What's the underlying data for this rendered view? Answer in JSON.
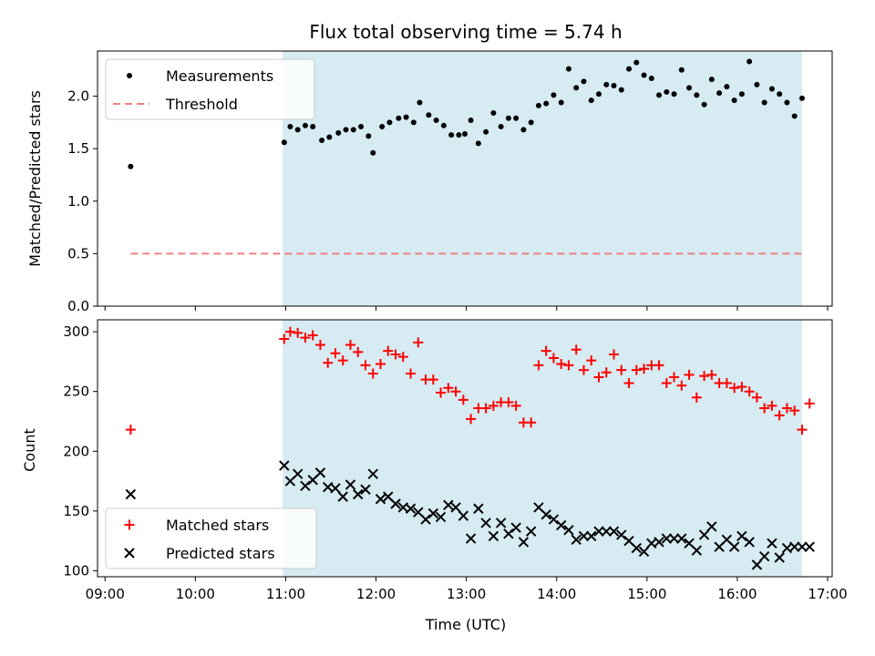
{
  "chart_data": [
    {
      "type": "scatter",
      "title": "Flux total observing time = 5.74 h",
      "xlabel": "",
      "ylabel": "Matched/Predicted stars",
      "xlim": [
        "08:55",
        "17:03"
      ],
      "ylim": [
        0,
        2.43
      ],
      "yticks": [
        "0.0",
        "0.5",
        "1.0",
        "1.5",
        "2.0"
      ],
      "shaded_span": [
        "10:58",
        "16:43"
      ],
      "shade_color": "#add8e6",
      "legend_position": "upper left",
      "series": [
        {
          "name": "Measurements",
          "marker": "dot",
          "color": "#000000",
          "points": [
            [
              "09:17",
              1.33
            ],
            [
              "10:59",
              1.56
            ],
            [
              "11:03",
              1.71
            ],
            [
              "11:08",
              1.68
            ],
            [
              "11:13",
              1.72
            ],
            [
              "11:18",
              1.71
            ],
            [
              "11:24",
              1.58
            ],
            [
              "11:29",
              1.61
            ],
            [
              "11:35",
              1.65
            ],
            [
              "11:40",
              1.68
            ],
            [
              "11:45",
              1.68
            ],
            [
              "11:50",
              1.71
            ],
            [
              "11:55",
              1.62
            ],
            [
              "11:58",
              1.46
            ],
            [
              "12:04",
              1.71
            ],
            [
              "12:09",
              1.75
            ],
            [
              "12:15",
              1.79
            ],
            [
              "12:20",
              1.8
            ],
            [
              "12:25",
              1.75
            ],
            [
              "12:29",
              1.94
            ],
            [
              "12:35",
              1.82
            ],
            [
              "12:40",
              1.77
            ],
            [
              "12:45",
              1.72
            ],
            [
              "12:50",
              1.63
            ],
            [
              "12:55",
              1.63
            ],
            [
              "12:59",
              1.64
            ],
            [
              "13:03",
              1.77
            ],
            [
              "13:08",
              1.55
            ],
            [
              "13:13",
              1.66
            ],
            [
              "13:18",
              1.84
            ],
            [
              "13:23",
              1.71
            ],
            [
              "13:28",
              1.79
            ],
            [
              "13:33",
              1.79
            ],
            [
              "13:38",
              1.68
            ],
            [
              "13:43",
              1.75
            ],
            [
              "13:48",
              1.91
            ],
            [
              "13:53",
              1.93
            ],
            [
              "13:58",
              2.01
            ],
            [
              "14:03",
              1.94
            ],
            [
              "14:08",
              2.26
            ],
            [
              "14:13",
              2.08
            ],
            [
              "14:18",
              2.14
            ],
            [
              "14:23",
              1.96
            ],
            [
              "14:28",
              2.02
            ],
            [
              "14:33",
              2.11
            ],
            [
              "14:38",
              2.1
            ],
            [
              "14:43",
              2.06
            ],
            [
              "14:48",
              2.26
            ],
            [
              "14:53",
              2.32
            ],
            [
              "14:58",
              2.2
            ],
            [
              "15:03",
              2.17
            ],
            [
              "15:08",
              2.01
            ],
            [
              "15:13",
              2.04
            ],
            [
              "15:18",
              2.02
            ],
            [
              "15:23",
              2.25
            ],
            [
              "15:28",
              2.08
            ],
            [
              "15:33",
              2.01
            ],
            [
              "15:38",
              1.92
            ],
            [
              "15:43",
              2.16
            ],
            [
              "15:48",
              2.03
            ],
            [
              "15:53",
              2.09
            ],
            [
              "15:58",
              1.96
            ],
            [
              "16:03",
              2.02
            ],
            [
              "16:08",
              2.33
            ],
            [
              "16:13",
              2.11
            ],
            [
              "16:18",
              1.94
            ],
            [
              "16:23",
              2.07
            ],
            [
              "16:28",
              2.02
            ],
            [
              "16:33",
              1.94
            ],
            [
              "16:38",
              1.81
            ],
            [
              "16:43",
              1.98
            ]
          ]
        },
        {
          "name": "Threshold",
          "marker": "dashed-line",
          "color": "#f08080",
          "points": [
            [
              "09:17",
              0.5
            ],
            [
              "16:43",
              0.5
            ]
          ]
        }
      ]
    },
    {
      "type": "scatter",
      "title": "",
      "xlabel": "Time (UTC)",
      "ylabel": "Count",
      "xlim": [
        "08:55",
        "17:03"
      ],
      "ylim": [
        95,
        310
      ],
      "xticks": [
        "09:00",
        "10:00",
        "11:00",
        "12:00",
        "13:00",
        "14:00",
        "15:00",
        "16:00",
        "17:00"
      ],
      "yticks": [
        "100",
        "150",
        "200",
        "250",
        "300"
      ],
      "shaded_span": [
        "10:58",
        "16:43"
      ],
      "shade_color": "#add8e6",
      "legend_position": "lower left",
      "series": [
        {
          "name": "Matched stars",
          "marker": "plus",
          "color": "#ff0000",
          "points": [
            [
              "09:17",
              218
            ],
            [
              "10:59",
              294
            ],
            [
              "11:03",
              300
            ],
            [
              "11:08",
              299
            ],
            [
              "11:13",
              295
            ],
            [
              "11:18",
              297
            ],
            [
              "11:23",
              289
            ],
            [
              "11:28",
              274
            ],
            [
              "11:33",
              282
            ],
            [
              "11:38",
              276
            ],
            [
              "11:43",
              289
            ],
            [
              "11:48",
              283
            ],
            [
              "11:53",
              272
            ],
            [
              "11:58",
              265
            ],
            [
              "12:03",
              273
            ],
            [
              "12:08",
              284
            ],
            [
              "12:13",
              281
            ],
            [
              "12:18",
              279
            ],
            [
              "12:23",
              265
            ],
            [
              "12:28",
              291
            ],
            [
              "12:33",
              260
            ],
            [
              "12:38",
              260
            ],
            [
              "12:43",
              249
            ],
            [
              "12:48",
              253
            ],
            [
              "12:53",
              250
            ],
            [
              "12:58",
              243
            ],
            [
              "13:03",
              227
            ],
            [
              "13:08",
              236
            ],
            [
              "13:13",
              236
            ],
            [
              "13:18",
              238
            ],
            [
              "13:23",
              241
            ],
            [
              "13:28",
              241
            ],
            [
              "13:33",
              238
            ],
            [
              "13:38",
              224
            ],
            [
              "13:43",
              224
            ],
            [
              "13:48",
              272
            ],
            [
              "13:53",
              284
            ],
            [
              "13:58",
              278
            ],
            [
              "14:03",
              273
            ],
            [
              "14:08",
              272
            ],
            [
              "14:13",
              285
            ],
            [
              "14:18",
              268
            ],
            [
              "14:23",
              276
            ],
            [
              "14:28",
              262
            ],
            [
              "14:33",
              266
            ],
            [
              "14:38",
              281
            ],
            [
              "14:43",
              268
            ],
            [
              "14:48",
              257
            ],
            [
              "14:53",
              268
            ],
            [
              "14:58",
              269
            ],
            [
              "15:03",
              272
            ],
            [
              "15:08",
              272
            ],
            [
              "15:13",
              257
            ],
            [
              "15:18",
              262
            ],
            [
              "15:23",
              255
            ],
            [
              "15:28",
              264
            ],
            [
              "15:33",
              245
            ],
            [
              "15:38",
              263
            ],
            [
              "15:43",
              264
            ],
            [
              "15:48",
              257
            ],
            [
              "15:53",
              257
            ],
            [
              "15:58",
              253
            ],
            [
              "16:03",
              254
            ],
            [
              "16:08",
              250
            ],
            [
              "16:13",
              245
            ],
            [
              "16:18",
              236
            ],
            [
              "16:23",
              238
            ],
            [
              "16:28",
              230
            ],
            [
              "16:33",
              236
            ],
            [
              "16:38",
              234
            ],
            [
              "16:43",
              218
            ],
            [
              "16:48",
              240
            ]
          ]
        },
        {
          "name": "Predicted stars",
          "marker": "x",
          "color": "#000000",
          "points": [
            [
              "09:17",
              164
            ],
            [
              "10:59",
              188
            ],
            [
              "11:03",
              175
            ],
            [
              "11:08",
              181
            ],
            [
              "11:13",
              171
            ],
            [
              "11:18",
              176
            ],
            [
              "11:23",
              182
            ],
            [
              "11:28",
              170
            ],
            [
              "11:33",
              169
            ],
            [
              "11:38",
              162
            ],
            [
              "11:43",
              172
            ],
            [
              "11:48",
              164
            ],
            [
              "11:53",
              168
            ],
            [
              "11:58",
              181
            ],
            [
              "12:03",
              160
            ],
            [
              "12:08",
              162
            ],
            [
              "12:13",
              156
            ],
            [
              "12:18",
              153
            ],
            [
              "12:23",
              152
            ],
            [
              "12:28",
              149
            ],
            [
              "12:33",
              143
            ],
            [
              "12:38",
              148
            ],
            [
              "12:43",
              145
            ],
            [
              "12:48",
              155
            ],
            [
              "12:53",
              153
            ],
            [
              "12:58",
              146
            ],
            [
              "13:03",
              127
            ],
            [
              "13:08",
              152
            ],
            [
              "13:13",
              140
            ],
            [
              "13:18",
              129
            ],
            [
              "13:23",
              140
            ],
            [
              "13:28",
              131
            ],
            [
              "13:33",
              136
            ],
            [
              "13:38",
              124
            ],
            [
              "13:43",
              133
            ],
            [
              "13:48",
              153
            ],
            [
              "13:53",
              147
            ],
            [
              "13:58",
              143
            ],
            [
              "14:03",
              138
            ],
            [
              "14:08",
              134
            ],
            [
              "14:13",
              126
            ],
            [
              "14:18",
              129
            ],
            [
              "14:23",
              129
            ],
            [
              "14:28",
              133
            ],
            [
              "14:33",
              133
            ],
            [
              "14:38",
              133
            ],
            [
              "14:43",
              130
            ],
            [
              "14:48",
              125
            ],
            [
              "14:53",
              119
            ],
            [
              "14:58",
              116
            ],
            [
              "15:03",
              123
            ],
            [
              "15:08",
              124
            ],
            [
              "15:13",
              127
            ],
            [
              "15:18",
              127
            ],
            [
              "15:23",
              127
            ],
            [
              "15:28",
              123
            ],
            [
              "15:33",
              117
            ],
            [
              "15:38",
              130
            ],
            [
              "15:43",
              137
            ],
            [
              "15:48",
              120
            ],
            [
              "15:53",
              126
            ],
            [
              "15:58",
              120
            ],
            [
              "16:03",
              129
            ],
            [
              "16:08",
              124
            ],
            [
              "16:13",
              105
            ],
            [
              "16:18",
              112
            ],
            [
              "16:23",
              123
            ],
            [
              "16:28",
              111
            ],
            [
              "16:33",
              119
            ],
            [
              "16:38",
              120
            ],
            [
              "16:43",
              120
            ],
            [
              "16:48",
              120
            ]
          ]
        }
      ]
    }
  ]
}
